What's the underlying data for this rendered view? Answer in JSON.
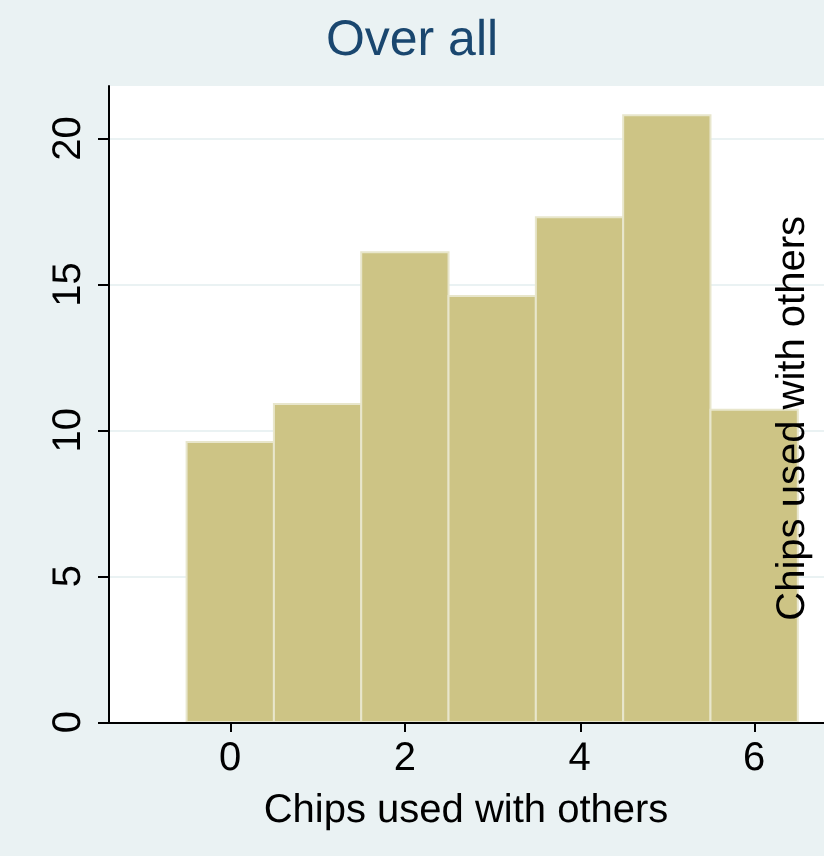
{
  "chart_data": {
    "type": "histogram",
    "title": "Over all",
    "xlabel": "Chips used with others",
    "y2label": "Chips used with others",
    "bins": [
      -0.5,
      0.5,
      1.5,
      2.5,
      3.5,
      4.5,
      5.5,
      6.5
    ],
    "values": [
      9.6,
      10.9,
      16.1,
      14.6,
      17.3,
      20.8,
      10.7
    ],
    "color": "#cdc485",
    "xlim": [
      -1.4,
      6.8
    ],
    "xticks": [
      0,
      2,
      4,
      6
    ],
    "ylim": [
      0,
      21.8
    ],
    "yticks": [
      0,
      5,
      10,
      15,
      20
    ],
    "grid": "y"
  }
}
